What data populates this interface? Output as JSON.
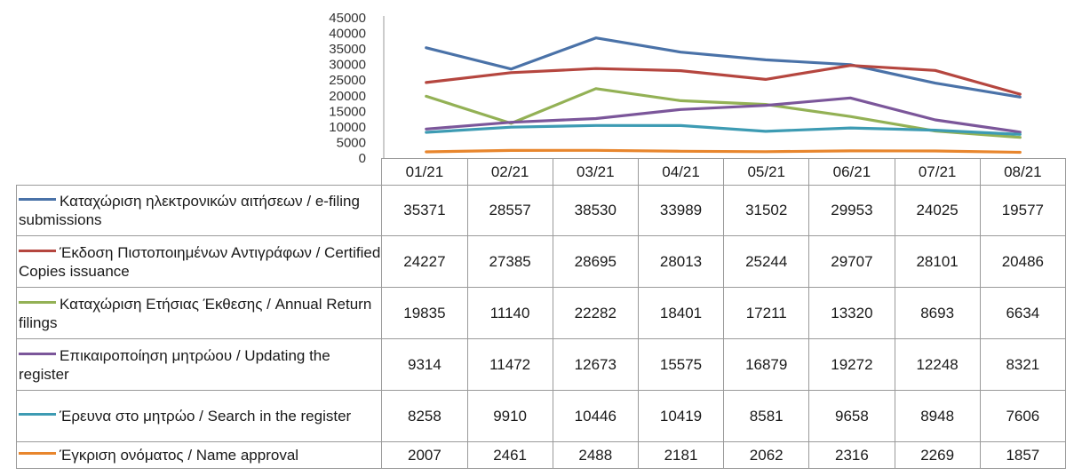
{
  "chart_data": {
    "type": "line",
    "categories": [
      "01/21",
      "02/21",
      "03/21",
      "04/21",
      "05/21",
      "06/21",
      "07/21",
      "08/21"
    ],
    "ylim": [
      0,
      45000
    ],
    "yticks": [
      "0",
      "5000",
      "10000",
      "15000",
      "20000",
      "25000",
      "30000",
      "35000",
      "40000",
      "45000"
    ],
    "grid": false,
    "legend": "data-table",
    "series": [
      {
        "name": "Καταχώριση ηλεκτρονικών αιτήσεων / e-filing submissions",
        "color": "#4a72a8",
        "values": [
          35371,
          28557,
          38530,
          33989,
          31502,
          29953,
          24025,
          19577
        ]
      },
      {
        "name": "Έκδοση Πιστοποιημένων Αντιγράφων / Certified Copies issuance",
        "color": "#b5463f",
        "values": [
          24227,
          27385,
          28695,
          28013,
          25244,
          29707,
          28101,
          20486
        ]
      },
      {
        "name": "Καταχώριση Ετήσιας Έκθεσης / Annual Return filings",
        "color": "#93b155",
        "values": [
          19835,
          11140,
          22282,
          18401,
          17211,
          13320,
          8693,
          6634
        ]
      },
      {
        "name": "Επικαιροποίηση μητρώου / Updating the register",
        "color": "#7b569a",
        "values": [
          9314,
          11472,
          12673,
          15575,
          16879,
          19272,
          12248,
          8321
        ]
      },
      {
        "name": "Έρευνα στο μητρώο / Search in the register",
        "color": "#3d9bb3",
        "values": [
          8258,
          9910,
          10446,
          10419,
          8581,
          9658,
          8948,
          7606
        ]
      },
      {
        "name": "Έγκριση ονόματος / Name approval",
        "color": "#e8862d",
        "values": [
          2007,
          2461,
          2488,
          2181,
          2062,
          2316,
          2269,
          1857
        ]
      }
    ]
  }
}
